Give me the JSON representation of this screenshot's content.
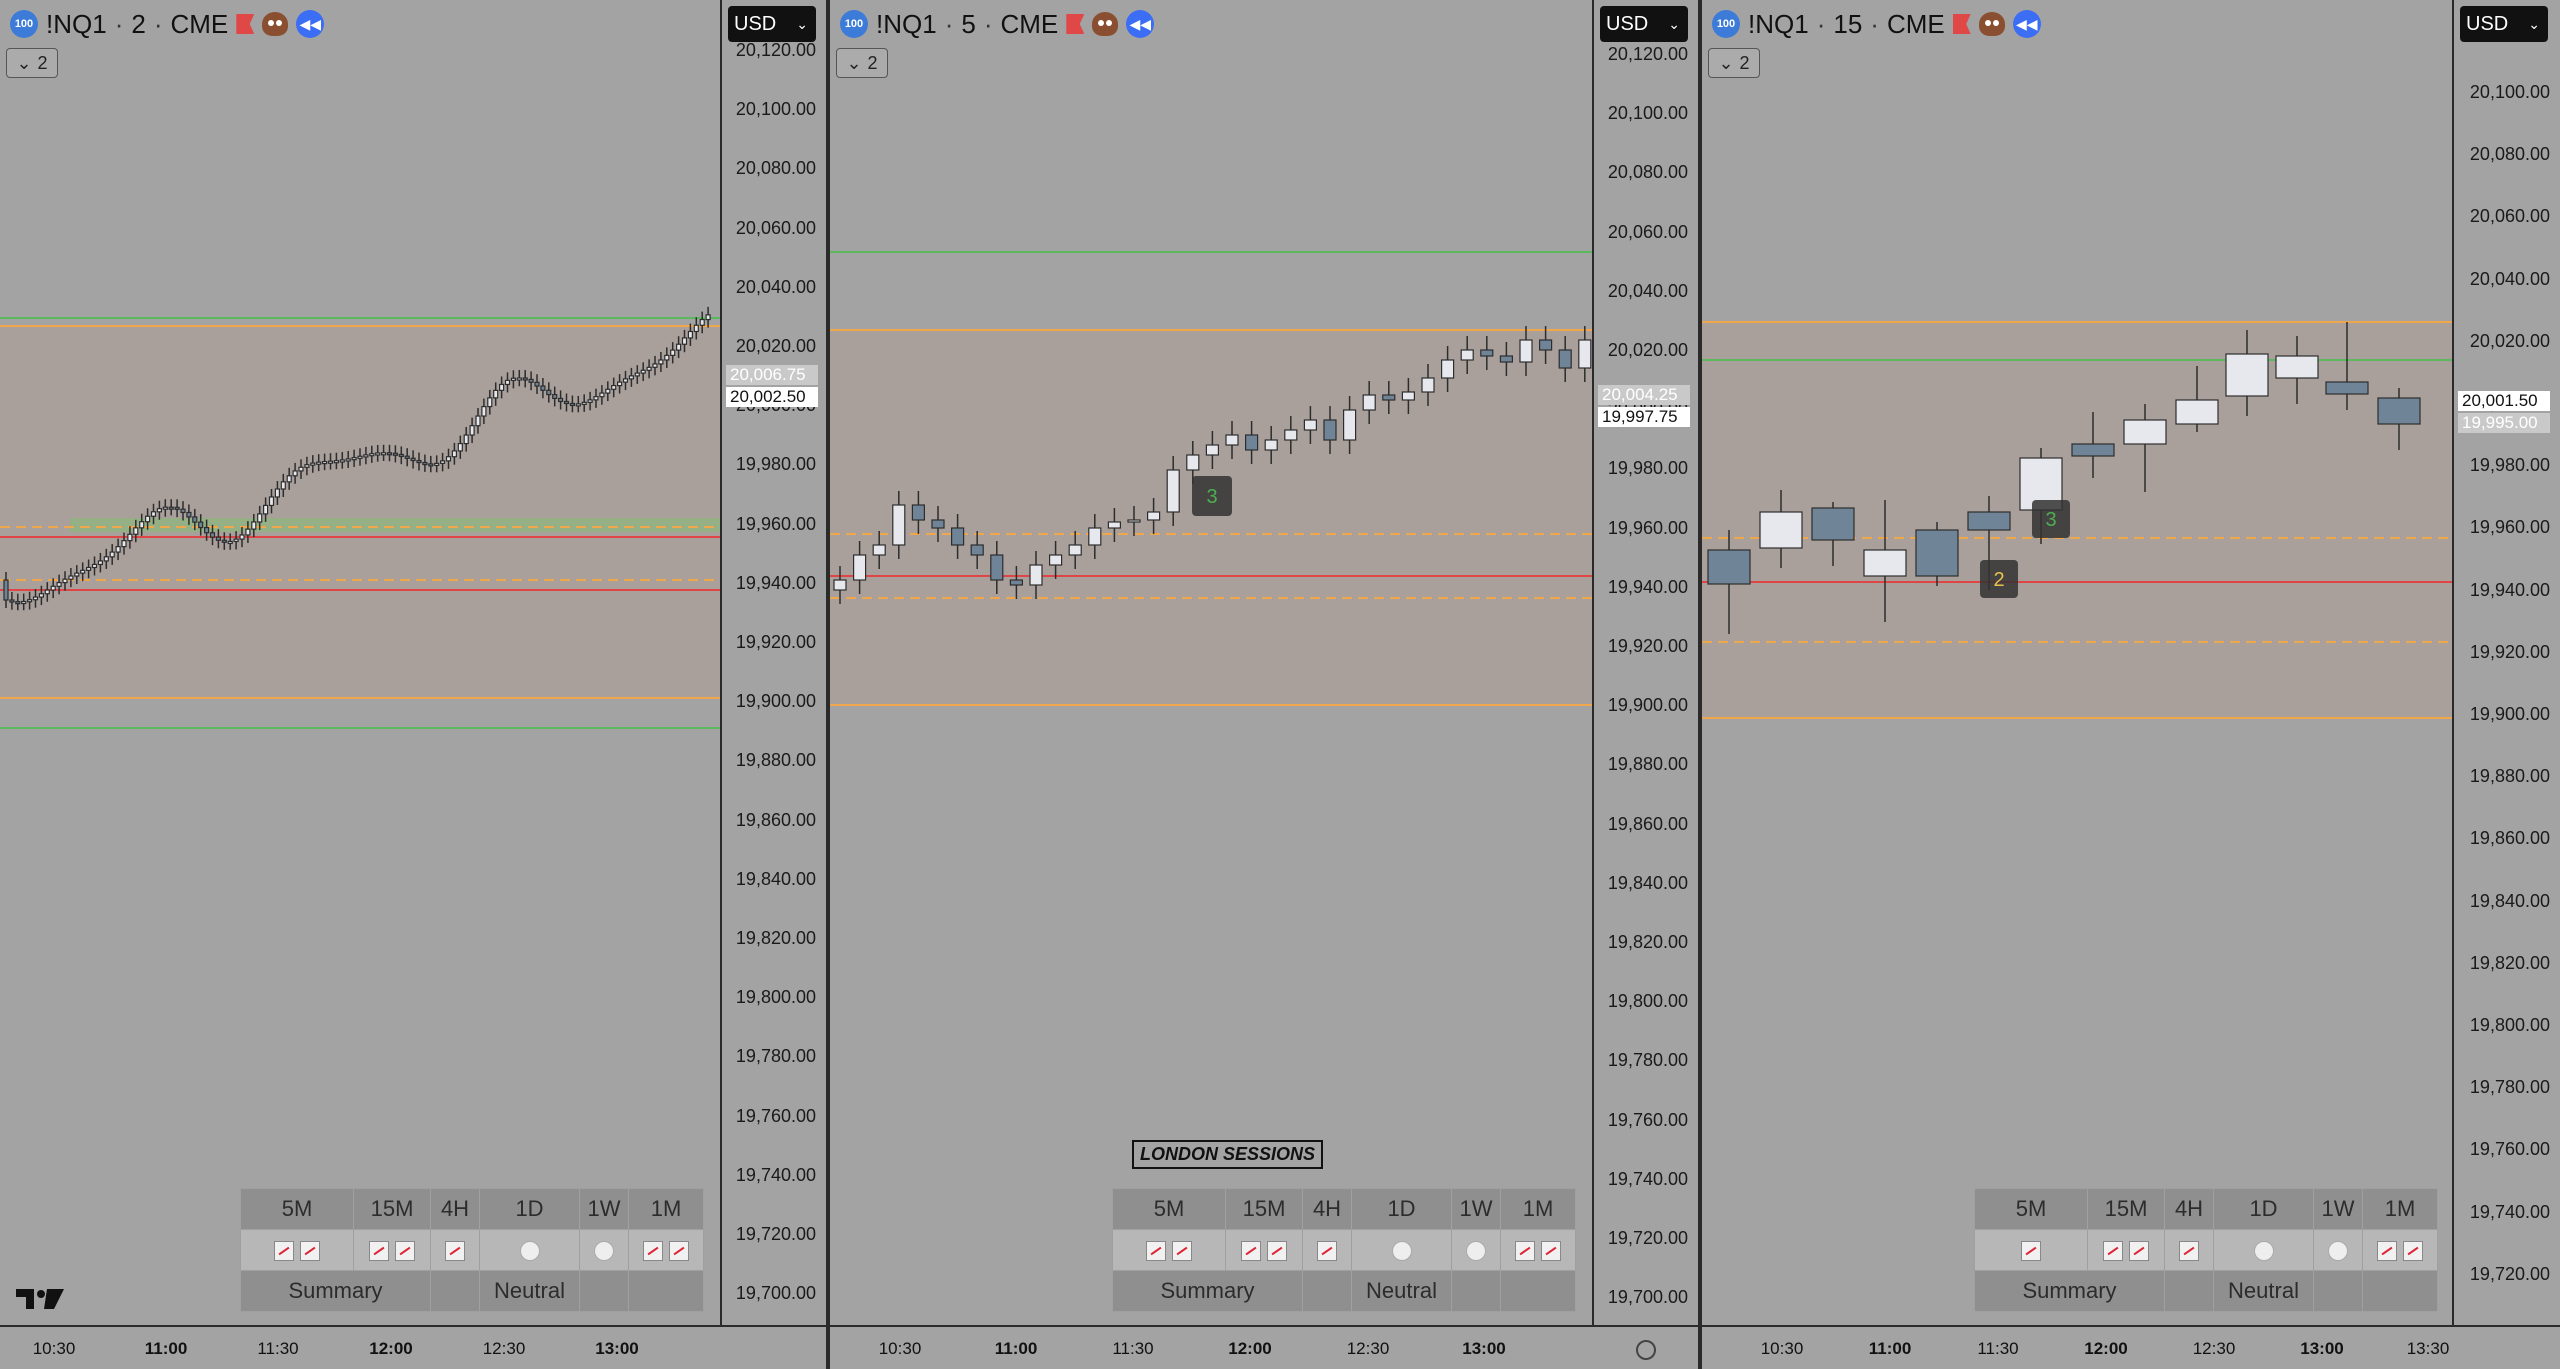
{
  "panes": [
    {
      "symbol": "!NQ1",
      "interval": "2",
      "exchange": "CME",
      "badge": "100",
      "collapse_count": "2",
      "currency": "USD",
      "price_tags": [
        "20,006.75",
        "20,002.50"
      ],
      "axis_ticks": [
        "20,120.00",
        "20,100.00",
        "20,080.00",
        "20,060.00",
        "20,040.00",
        "20,020.00",
        "20,000.00",
        "19,980.00",
        "19,960.00",
        "19,940.00",
        "19,920.00",
        "19,900.00",
        "19,880.00",
        "19,860.00",
        "19,840.00",
        "19,820.00",
        "19,800.00",
        "19,780.00",
        "19,760.00",
        "19,740.00",
        "19,720.00",
        "19,700.00"
      ],
      "time_labels": [
        {
          "text": "10:30",
          "bold": false
        },
        {
          "text": "11:00",
          "bold": true
        },
        {
          "text": "11:30",
          "bold": false
        },
        {
          "text": "12:00",
          "bold": true
        },
        {
          "text": "12:30",
          "bold": false
        },
        {
          "text": "13:00",
          "bold": true
        }
      ],
      "summary": {
        "headers": [
          "5M",
          "15M",
          "4H",
          "1D",
          "1W",
          "1M"
        ],
        "icons": [
          "up-up",
          "up-up",
          "up",
          "neutral",
          "neutral",
          "up-up"
        ],
        "footer_left": "Summary",
        "footer_mid": "Neutral"
      }
    },
    {
      "symbol": "!NQ1",
      "interval": "5",
      "exchange": "CME",
      "badge": "100",
      "collapse_count": "2",
      "currency": "USD",
      "price_tags": [
        "20,004.25",
        "19,997.75"
      ],
      "axis_ticks": [
        "20,120.00",
        "20,100.00",
        "20,080.00",
        "20,060.00",
        "20,040.00",
        "20,020.00",
        "20,000.00",
        "19,980.00",
        "19,960.00",
        "19,940.00",
        "19,920.00",
        "19,900.00",
        "19,880.00",
        "19,860.00",
        "19,840.00",
        "19,820.00",
        "19,800.00",
        "19,780.00",
        "19,760.00",
        "19,740.00",
        "19,720.00",
        "19,700.00"
      ],
      "time_labels": [
        {
          "text": "10:30",
          "bold": false
        },
        {
          "text": "11:00",
          "bold": true
        },
        {
          "text": "11:30",
          "bold": false
        },
        {
          "text": "12:00",
          "bold": true
        },
        {
          "text": "12:30",
          "bold": false
        },
        {
          "text": "13:00",
          "bold": true
        }
      ],
      "summary": {
        "headers": [
          "5M",
          "15M",
          "4H",
          "1D",
          "1W",
          "1M"
        ],
        "icons": [
          "up-up",
          "up-up",
          "up",
          "neutral",
          "neutral",
          "up-up"
        ],
        "footer_left": "Summary",
        "footer_mid": "Neutral"
      },
      "session_label": "LONDON SESSIONS",
      "marker": "3"
    },
    {
      "symbol": "!NQ1",
      "interval": "15",
      "exchange": "CME",
      "badge": "100",
      "collapse_count": "2",
      "currency": "USD",
      "price_tags": [
        "20,001.50",
        "19,995.00"
      ],
      "axis_ticks": [
        "20,100.00",
        "20,080.00",
        "20,060.00",
        "20,040.00",
        "20,020.00",
        "20,000.00",
        "19,980.00",
        "19,960.00",
        "19,940.00",
        "19,920.00",
        "19,900.00",
        "19,880.00",
        "19,860.00",
        "19,840.00",
        "19,820.00",
        "19,800.00",
        "19,780.00",
        "19,760.00",
        "19,740.00",
        "19,720.00"
      ],
      "time_labels": [
        {
          "text": "10:30",
          "bold": false
        },
        {
          "text": "11:00",
          "bold": true
        },
        {
          "text": "11:30",
          "bold": false
        },
        {
          "text": "12:00",
          "bold": true
        },
        {
          "text": "12:30",
          "bold": false
        },
        {
          "text": "13:00",
          "bold": true
        },
        {
          "text": "13:30",
          "bold": false
        }
      ],
      "summary": {
        "headers": [
          "5M",
          "15M",
          "4H",
          "1D",
          "1W",
          "1M"
        ],
        "icons": [
          "up",
          "up-up",
          "up",
          "neutral",
          "neutral",
          "up-up"
        ],
        "footer_left": "Summary",
        "footer_mid": "Neutral"
      },
      "markers": [
        "2",
        "3"
      ]
    }
  ],
  "colors": {
    "orange_line": "#f0a64a",
    "green_line": "#5cb85c",
    "red_line": "#e04545",
    "candle_up": "#e6e8ee",
    "candle_down": "#6f8497",
    "zone_fill": "#ad9f97"
  }
}
